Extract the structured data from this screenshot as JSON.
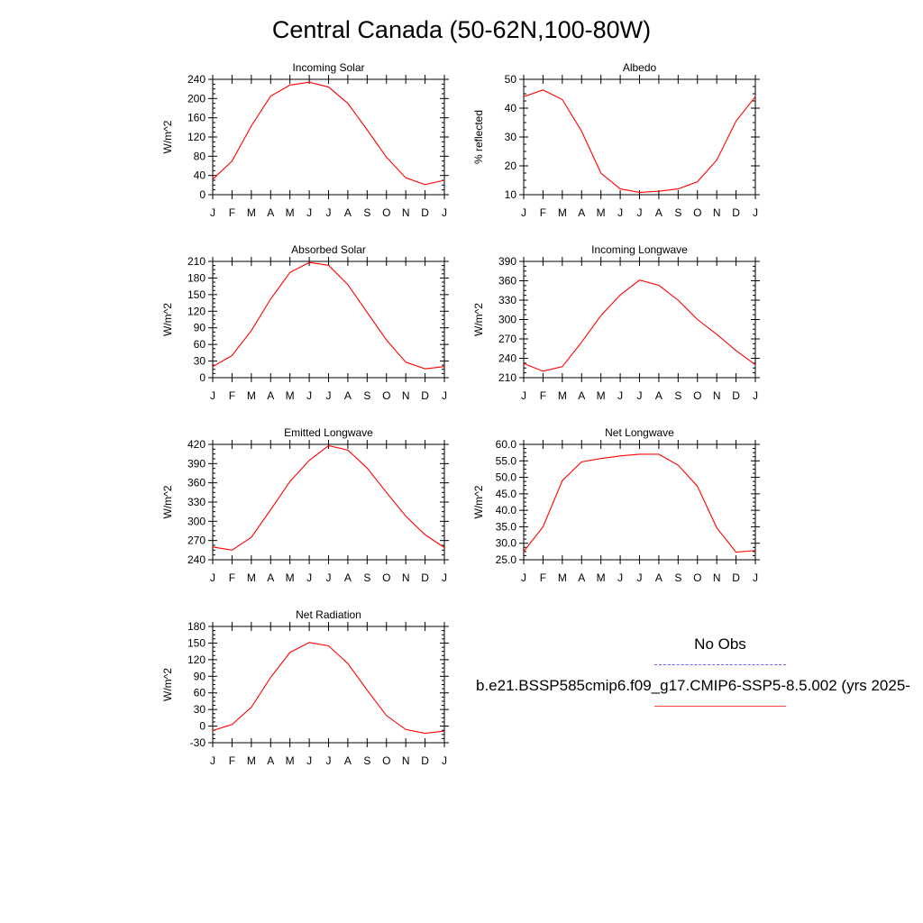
{
  "title": "Central Canada (50-62N,100-80W)",
  "legend": {
    "obs_label": "No Obs",
    "obs_color": "#6666ff",
    "run_label": "b.e21.BSSP585cmip6.f09_g17.CMIP6-SSP5-8.5.002 (yrs 2025-",
    "run_color": "#ff0000"
  },
  "chart_data": [
    {
      "type": "line",
      "title": "Incoming Solar",
      "ylabel": "W/m^2",
      "categories": [
        "J",
        "F",
        "M",
        "A",
        "M",
        "J",
        "J",
        "A",
        "S",
        "O",
        "N",
        "D",
        "J"
      ],
      "ylim": [
        0,
        240
      ],
      "yticks": [
        0,
        40,
        80,
        120,
        160,
        200,
        240
      ],
      "tick_labels": [
        "0",
        "40",
        "80",
        "120",
        "160",
        "200",
        "240"
      ],
      "series": [
        {
          "values": [
            32,
            70,
            143,
            205,
            228,
            234,
            224,
            190,
            135,
            78,
            35,
            21,
            30
          ]
        }
      ]
    },
    {
      "type": "line",
      "title": "Albedo",
      "ylabel": "% reflected",
      "categories": [
        "J",
        "F",
        "M",
        "A",
        "M",
        "J",
        "J",
        "A",
        "S",
        "O",
        "N",
        "D",
        "J"
      ],
      "ylim": [
        10,
        50
      ],
      "yticks": [
        10,
        20,
        30,
        40,
        50
      ],
      "tick_labels": [
        "10",
        "20",
        "30",
        "40",
        "50"
      ],
      "series": [
        {
          "values": [
            44,
            46.3,
            43,
            32,
            17.5,
            12,
            10.8,
            11.2,
            12,
            14.5,
            22,
            35.5,
            44
          ]
        }
      ]
    },
    {
      "type": "line",
      "title": "Absorbed Solar",
      "ylabel": "W/m^2",
      "categories": [
        "J",
        "F",
        "M",
        "A",
        "M",
        "J",
        "J",
        "A",
        "S",
        "O",
        "N",
        "D",
        "J"
      ],
      "ylim": [
        0,
        210
      ],
      "yticks": [
        0,
        30,
        60,
        90,
        120,
        150,
        180,
        210
      ],
      "tick_labels": [
        "0",
        "30",
        "60",
        "90",
        "120",
        "150",
        "180",
        "210"
      ],
      "series": [
        {
          "values": [
            20,
            40,
            85,
            142,
            190,
            208,
            203,
            168,
            118,
            68,
            28,
            16,
            20
          ]
        }
      ]
    },
    {
      "type": "line",
      "title": "Incoming Longwave",
      "ylabel": "W/m^2",
      "categories": [
        "J",
        "F",
        "M",
        "A",
        "M",
        "J",
        "J",
        "A",
        "S",
        "O",
        "N",
        "D",
        "J"
      ],
      "ylim": [
        210,
        390
      ],
      "yticks": [
        210,
        240,
        270,
        300,
        330,
        360,
        390
      ],
      "tick_labels": [
        "210",
        "240",
        "270",
        "300",
        "330",
        "360",
        "390"
      ],
      "series": [
        {
          "values": [
            232,
            220,
            227,
            265,
            306,
            338,
            361,
            353,
            330,
            300,
            277,
            252,
            230
          ]
        }
      ]
    },
    {
      "type": "line",
      "title": "Emitted Longwave",
      "ylabel": "W/m^2",
      "categories": [
        "J",
        "F",
        "M",
        "A",
        "M",
        "J",
        "J",
        "A",
        "S",
        "O",
        "N",
        "D",
        "J"
      ],
      "ylim": [
        240,
        420
      ],
      "yticks": [
        240,
        270,
        300,
        330,
        360,
        390,
        420
      ],
      "tick_labels": [
        "240",
        "270",
        "300",
        "330",
        "360",
        "390",
        "420"
      ],
      "series": [
        {
          "values": [
            260,
            255,
            275,
            318,
            362,
            395,
            418,
            411,
            383,
            345,
            308,
            279,
            259
          ]
        }
      ]
    },
    {
      "type": "line",
      "title": "Net Longwave",
      "ylabel": "W/m^2",
      "categories": [
        "J",
        "F",
        "M",
        "A",
        "M",
        "J",
        "J",
        "A",
        "S",
        "O",
        "N",
        "D",
        "J"
      ],
      "ylim": [
        25,
        60
      ],
      "yticks": [
        25,
        30,
        35,
        40,
        45,
        50,
        55,
        60
      ],
      "tick_labels": [
        "25.0",
        "30.0",
        "35.0",
        "40.0",
        "45.0",
        "50.0",
        "55.0",
        "60.0"
      ],
      "series": [
        {
          "values": [
            27.5,
            35,
            49,
            54.7,
            55.7,
            56.5,
            57.0,
            57.0,
            53.7,
            47.3,
            34.7,
            27.3,
            27.8
          ]
        }
      ]
    },
    {
      "type": "line",
      "title": "Net Radiation",
      "ylabel": "W/m^2",
      "categories": [
        "J",
        "F",
        "M",
        "A",
        "M",
        "J",
        "J",
        "A",
        "S",
        "O",
        "N",
        "D",
        "J"
      ],
      "ylim": [
        -30,
        180
      ],
      "yticks": [
        -30,
        0,
        30,
        60,
        90,
        120,
        150,
        180
      ],
      "tick_labels": [
        "-30",
        "0",
        "30",
        "60",
        "90",
        "120",
        "150",
        "180"
      ],
      "series": [
        {
          "values": [
            -8,
            3,
            34,
            88,
            133,
            151,
            145,
            113,
            65,
            19,
            -6,
            -13,
            -9
          ]
        }
      ]
    }
  ]
}
